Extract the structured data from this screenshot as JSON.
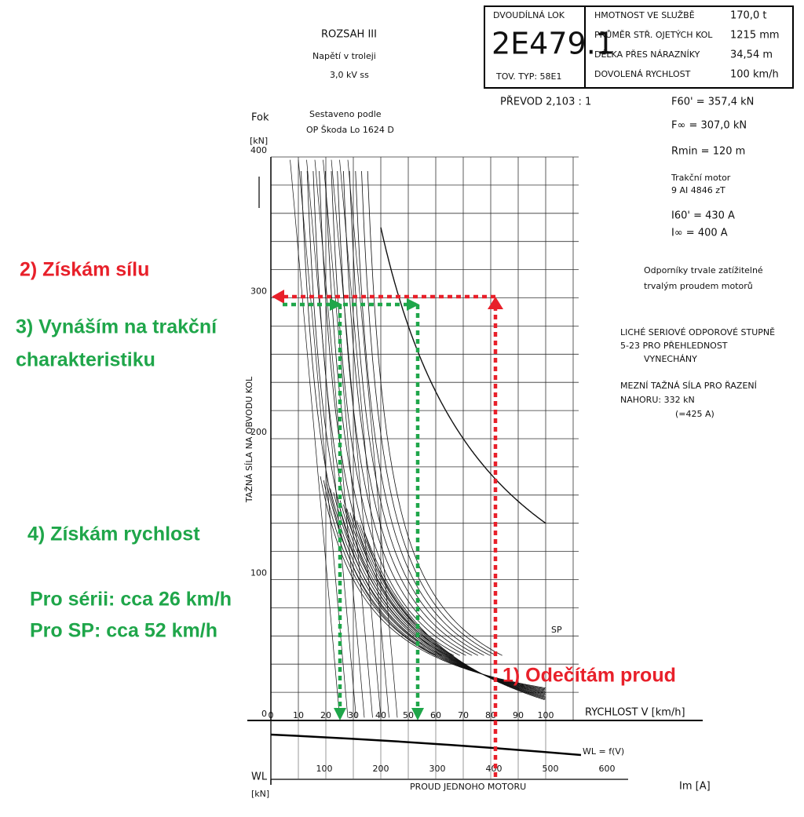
{
  "header": {
    "locomotive_label": "DVOUDÍLNÁ LOK",
    "locomotive": "2E479.1",
    "type": "TOV. TYP: 58E1",
    "specs": [
      [
        "HMOTNOST VE SLUŽBĚ",
        "170,0 t"
      ],
      [
        "PRŮMĚR STŘ. OJETÝCH KOL",
        "1215 mm"
      ],
      [
        "DÉLKA PŘES NÁRAZNÍKY",
        "34,54 m"
      ],
      [
        "DOVOLENÁ RYCHLOST",
        "100 km/h"
      ]
    ]
  },
  "notes_left": [
    "ROZSAH III",
    "Napětí v troleji",
    "3,0 kV ss",
    "Sestaveno podle",
    "OP Škoda Lo 1624 D"
  ],
  "notes_right": [
    "PŘEVOD 2,103 : 1",
    "F60' = 357,4 kN",
    "F∞ = 307,0 kN",
    "Rmin = 120 m",
    "Trakční motor",
    "9 AI 4846 zT",
    "I60' = 430 A",
    "I∞ = 400 A",
    "Odporníky trvale zatížitelné",
    "trvalým proudem motorů",
    "LICHÉ SERIOVÉ ODPOROVÉ STUPNĚ",
    "5-23 PRO PŘEHLEDNOST",
    "VYNECHÁNY",
    "MEZNÍ TAŽNÁ SÍLA PRO ŘAZENÍ",
    "NAHORU:   332 kN",
    "(=425 A)"
  ],
  "axes": {
    "force_label": "Fok",
    "force_unit": "[kN]",
    "force_title": "TAŽNÁ SÍLA NA OBVODU KOL",
    "force_ticks": [
      "0",
      "100",
      "200",
      "300",
      "400"
    ],
    "speed_title": "RYCHLOST V [km/h]",
    "speed_ticks": [
      "0",
      "10",
      "20",
      "30",
      "40",
      "50",
      "60",
      "70",
      "80",
      "90",
      "100"
    ],
    "current_ticks": [
      "100",
      "200",
      "300",
      "400",
      "500",
      "600"
    ],
    "current_title": "PROUD JEDNOHO MOTORU",
    "current_label": "Im [A]",
    "resistance_label": "WL",
    "resistance_unit": "[kN]",
    "resistance_curve": "WL = f(V)",
    "sp_curve": "SP"
  },
  "annotations": {
    "step1": "1) Odečítám proud",
    "step2": "2) Získám sílu",
    "step3": [
      "3) Vynáším na trakční",
      "charakteristiku"
    ],
    "step4": "4) Získám rychlost",
    "series": "Pro sérii: cca 26 km/h",
    "sp": "Pro SP: cca 52 km/h"
  }
}
